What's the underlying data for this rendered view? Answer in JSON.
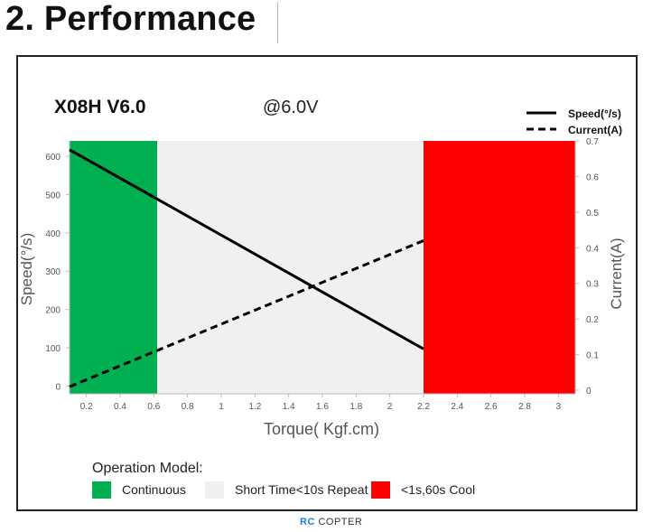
{
  "heading": "2. Performance",
  "watermark": {
    "prefix": "RC",
    "suffix": "COPTER"
  },
  "chart_data": {
    "type": "line",
    "title": "X08H V6.0",
    "subtitle": "@6.0V",
    "xlabel": "Torque( Kgf.cm)",
    "ylabel": "Speed(°/s)",
    "y2label": "Current(A)",
    "xlim": [
      0.1,
      3.1
    ],
    "ylim": [
      -20,
      640
    ],
    "y2lim": [
      -0.01,
      0.7
    ],
    "x_ticks": [
      "0.2",
      "0.4",
      "0.6",
      "0.8",
      "1",
      "1.2",
      "1.4",
      "1.6",
      "1.8",
      "2",
      "2.2",
      "2.4",
      "2.6",
      "2.8",
      "3"
    ],
    "y_ticks": [
      "0",
      "100",
      "200",
      "300",
      "400",
      "500",
      "600"
    ],
    "y2_ticks": [
      "0",
      "0.1",
      "0.2",
      "0.3",
      "0.4",
      "0.5",
      "0.6",
      "0.7"
    ],
    "grid": false,
    "legend_position": "top-right",
    "series": [
      {
        "name": "Speed(°/s)",
        "axis": "left",
        "style": "solid",
        "color": "#000000",
        "points": [
          [
            0.1,
            617
          ],
          [
            2.2,
            97
          ]
        ]
      },
      {
        "name": "Current(A)",
        "axis": "right",
        "style": "dashed",
        "color": "#000000",
        "points": [
          [
            0.1,
            0.01
          ],
          [
            2.2,
            0.42
          ]
        ]
      }
    ],
    "zones": [
      {
        "label": "Continuous",
        "from": 0.1,
        "to": 0.62,
        "color": "#00b050"
      },
      {
        "label": "Short Time<10s Repeat",
        "from": 0.62,
        "to": 2.2,
        "color": "#f0f0ee"
      },
      {
        "label": "<1s,60s Cool",
        "from": 2.2,
        "to": 3.1,
        "color": "#ff0000"
      }
    ],
    "zone_legend_title": "Operation Model:"
  }
}
